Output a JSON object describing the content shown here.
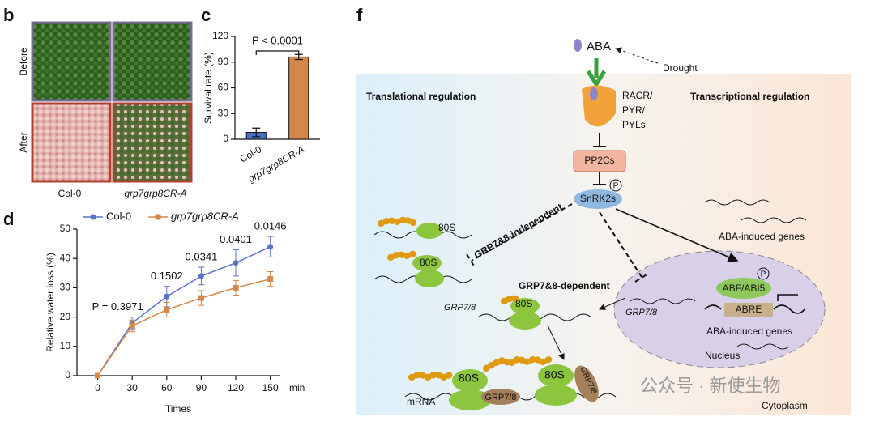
{
  "panel_labels": [
    "b",
    "c",
    "d",
    "f"
  ],
  "panel_b": {
    "rows": [
      "Before",
      "After"
    ],
    "columns": [
      "Col-0",
      "grp7grp8CR-A"
    ]
  },
  "chart_data": [
    {
      "type": "bar",
      "ylabel": "Survival rate (%)",
      "categories": [
        "Col-0",
        "grp7grp8CR-A"
      ],
      "values": [
        8,
        96
      ],
      "errors": [
        5,
        3
      ],
      "colors": [
        "#4a6fc7",
        "#d4874a"
      ],
      "ylim": [
        0,
        120
      ],
      "yticks": [
        0,
        30,
        60,
        90,
        120
      ],
      "annotation": "P < 0.0001"
    },
    {
      "type": "line",
      "xlabel": "Times",
      "x_unit": "min",
      "ylabel": "Relative water loss (%)",
      "x": [
        0,
        30,
        60,
        90,
        120,
        150
      ],
      "xlim": [
        -18,
        158
      ],
      "xticks": [
        0,
        30,
        60,
        90,
        120,
        150
      ],
      "ylim": [
        0,
        50
      ],
      "yticks": [
        0,
        10,
        20,
        30,
        40,
        50
      ],
      "series": [
        {
          "name": "Col-0",
          "color": "#5b73c9",
          "marker": "circle",
          "values": [
            0,
            18,
            27,
            34,
            38.5,
            44
          ],
          "errors": [
            0,
            2,
            3.5,
            3,
            4.5,
            3.5
          ]
        },
        {
          "name": "grp7grp8CR-A",
          "color": "#d4874a",
          "marker": "square",
          "values": [
            0,
            17,
            22.5,
            26.5,
            30,
            33
          ],
          "errors": [
            0,
            2,
            2.5,
            2.5,
            2.5,
            2.5
          ]
        }
      ],
      "annotations": [
        {
          "x": 30,
          "text": "P = 0.3971"
        },
        {
          "x": 60,
          "text": "0.1502"
        },
        {
          "x": 90,
          "text": "0.0341"
        },
        {
          "x": 120,
          "text": "0.0401"
        },
        {
          "x": 150,
          "text": "0.0146"
        }
      ]
    }
  ],
  "diagram": {
    "aba": "ABA",
    "drought": "Drought",
    "receptor": [
      "RACR/",
      "PYR/",
      "PYLs"
    ],
    "pp2c": "PP2Cs",
    "snrk": "SnRK2s",
    "phospho": "P",
    "left_title": "Translational regulation",
    "right_title": "Transcriptional regulation",
    "independent": "GRP7&8-independent",
    "dependent": "GRP7&8-dependent",
    "ribosome": "80S",
    "grp": "GRP7/8",
    "genes": "ABA-induced genes",
    "abf": "ABF/ABI5",
    "abre": "ABRE",
    "nucleus": "Nucleus",
    "mrna": "mRNA",
    "cytoplasm": "Cytoplasm"
  },
  "watermark": "公众号 · 新使生物"
}
